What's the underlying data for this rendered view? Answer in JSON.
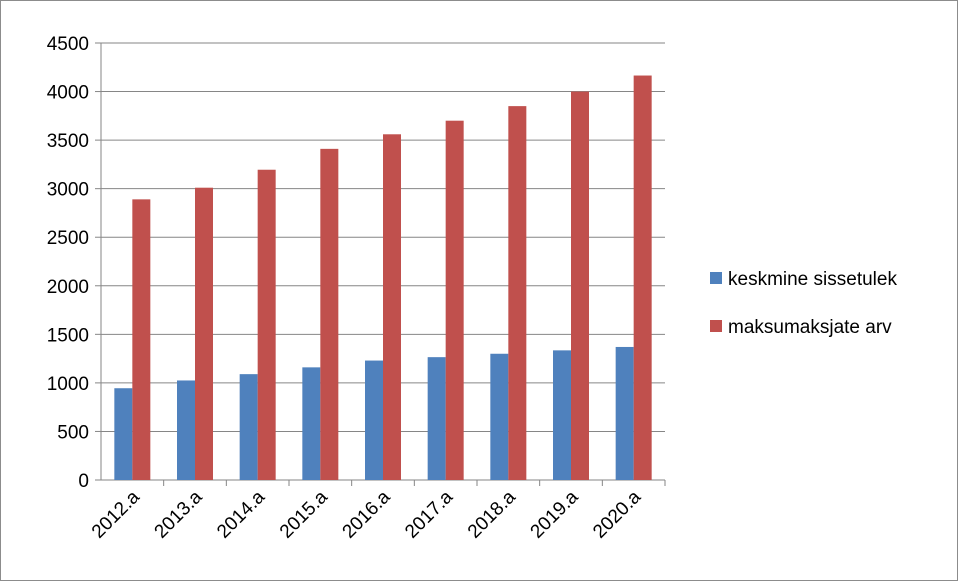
{
  "chart_data": {
    "type": "bar",
    "categories": [
      "2012.a",
      "2013.a",
      "2014.a",
      "2015.a",
      "2016.a",
      "2017.a",
      "2018.a",
      "2019.a",
      "2020.a"
    ],
    "series": [
      {
        "name": "keskmine sissetulek",
        "color": "#4f81bd",
        "values": [
          945,
          1025,
          1090,
          1160,
          1230,
          1265,
          1300,
          1335,
          1370
        ]
      },
      {
        "name": "maksumaksjate arv",
        "color": "#c0504d",
        "values": [
          2890,
          3010,
          3195,
          3410,
          3560,
          3700,
          3850,
          4000,
          4165
        ]
      }
    ],
    "ylim": [
      0,
      4500
    ],
    "yticks": [
      0,
      500,
      1000,
      1500,
      2000,
      2500,
      3000,
      3500,
      4000,
      4500
    ],
    "grid": "horizontal",
    "legend_position": "right",
    "title": "",
    "xlabel": "",
    "ylabel": ""
  }
}
